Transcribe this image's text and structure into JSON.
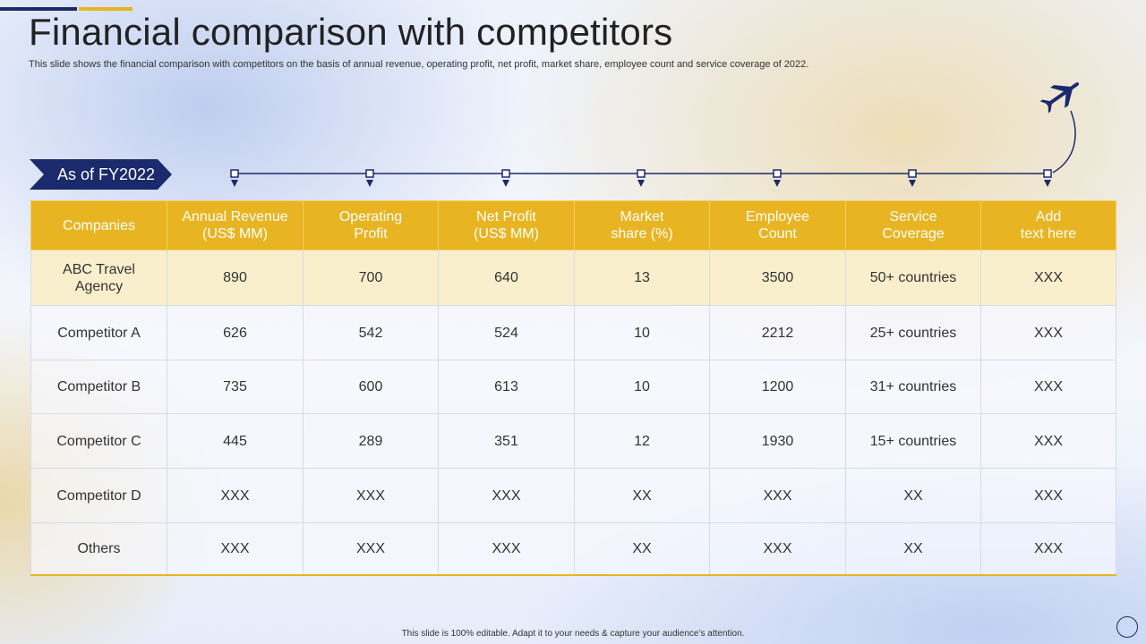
{
  "title": "Financial comparison with competitors",
  "subtitle": "This slide shows the financial comparison with competitors on the basis of annual revenue, operating profit, net profit,  market share, employee count and service coverage of 2022.",
  "badge": "As of FY2022",
  "colors": {
    "navy": "#1a2a6c",
    "gold": "#e8b422",
    "highlight_row": "#f9efcc"
  },
  "icons": {
    "plane": "airplane-icon",
    "timeline_marker": "pin-marker-icon",
    "nav": "circle-icon"
  },
  "table": {
    "headers": [
      [
        "Companies"
      ],
      [
        "Annual Revenue",
        "(US$ MM)"
      ],
      [
        "Operating",
        "Profit"
      ],
      [
        "Net Profit",
        "(US$ MM)"
      ],
      [
        "Market",
        "share (%)"
      ],
      [
        "Employee",
        "Count"
      ],
      [
        "Service",
        "Coverage"
      ],
      [
        "Add",
        "text here"
      ]
    ],
    "rows": [
      {
        "company": [
          "ABC Travel",
          "Agency"
        ],
        "cells": [
          "890",
          "700",
          "640",
          "13",
          "3500",
          "50+ countries",
          "XXX"
        ]
      },
      {
        "company": [
          "Competitor A"
        ],
        "cells": [
          "626",
          "542",
          "524",
          "10",
          "2212",
          "25+ countries",
          "XXX"
        ]
      },
      {
        "company": [
          "Competitor B"
        ],
        "cells": [
          "735",
          "600",
          "613",
          "10",
          "1200",
          "31+ countries",
          "XXX"
        ]
      },
      {
        "company": [
          "Competitor C"
        ],
        "cells": [
          "445",
          "289",
          "351",
          "12",
          "1930",
          "15+ countries",
          "XXX"
        ]
      },
      {
        "company": [
          "Competitor D"
        ],
        "cells": [
          "XXX",
          "XXX",
          "XXX",
          "XX",
          "XXX",
          "XX",
          "XXX"
        ]
      },
      {
        "company": [
          "Others"
        ],
        "cells": [
          "XXX",
          "XXX",
          "XXX",
          "XX",
          "XXX",
          "XX",
          "XXX"
        ]
      }
    ]
  },
  "footer": "This slide is 100% editable.  Adapt it to your needs & capture your audience’s attention."
}
